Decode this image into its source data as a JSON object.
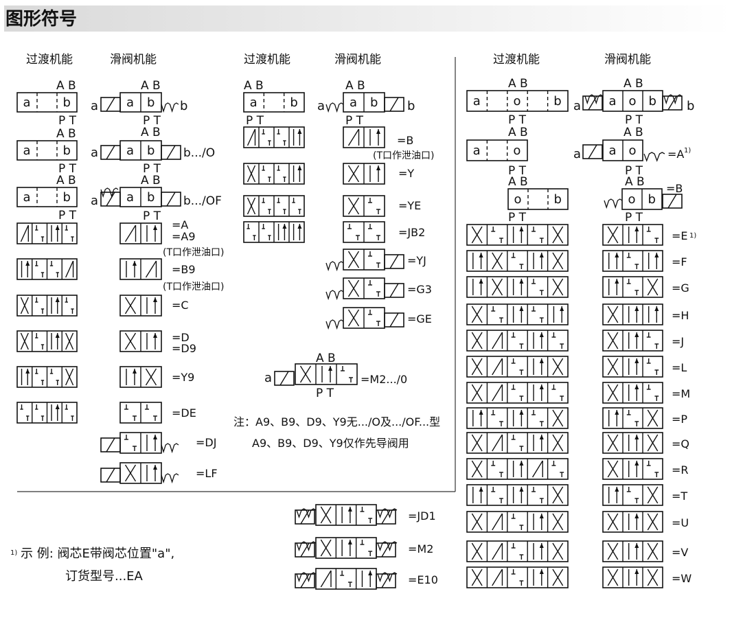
{
  "title": "图形符号",
  "column_headers": {
    "transition": "过渡机能",
    "spool": "滑阀机能"
  },
  "ports": {
    "ab": "A B",
    "pt": "P T"
  },
  "letters": {
    "a": "a",
    "b": "b",
    "o": "o"
  },
  "left": {
    "b_o": "b.../O",
    "b_of": "b.../OF",
    "codes": [
      "=A",
      "=A9",
      "(T口作泄油口)",
      "=B9",
      "(T口作泄油口)",
      "=C",
      "=D",
      "=D9",
      "=Y9",
      "=DE",
      "=DJ",
      "=LF"
    ]
  },
  "middle": {
    "codes": [
      "=B",
      "(T口作泄油口)",
      "=Y",
      "=YE",
      "=JB2",
      "=YJ",
      "=G3",
      "=GE"
    ],
    "m2": "=M2.../0",
    "note_line1": "注：A9、B9、D9、Y9无.../O及.../OF...型",
    "note_line2": "A9、B9、D9、Y9仅作先导阀用",
    "bottom_codes": [
      "=JD1",
      "=M2",
      "=E10"
    ]
  },
  "right": {
    "code_a": "=A",
    "code_b": "=B",
    "sup": "1)",
    "codes": [
      "=E",
      "=F",
      "=G",
      "=H",
      "=J",
      "=L",
      "=M",
      "=P",
      "=Q",
      "=R",
      "=T",
      "=U",
      "=V",
      "=W"
    ]
  },
  "footnote": {
    "marker": "1)",
    "line1": "示 例: 阀芯E带阀芯位置\"a\",",
    "line2": "订货型号...EA"
  }
}
